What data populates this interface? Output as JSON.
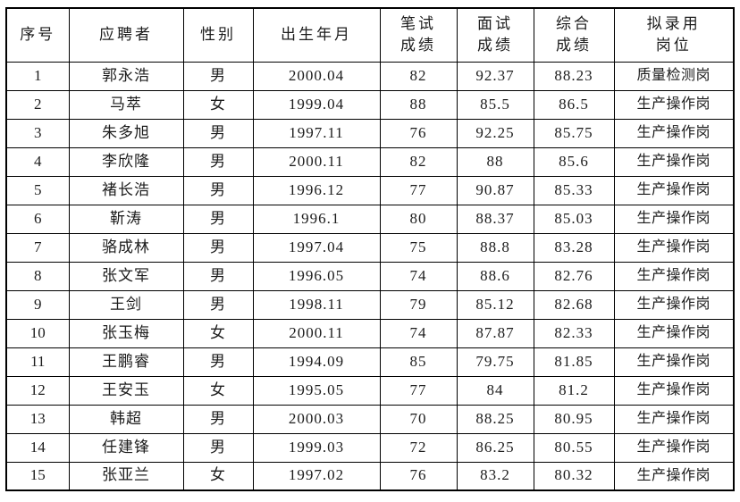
{
  "colors": {
    "border": "#000000",
    "text": "#1c1c1c",
    "background": "#ffffff"
  },
  "table": {
    "columns": [
      {
        "key": "index",
        "label": "序号"
      },
      {
        "key": "name",
        "label": "应聘者"
      },
      {
        "key": "gender",
        "label": "性别"
      },
      {
        "key": "birth",
        "label": "出生年月"
      },
      {
        "key": "written",
        "label": "笔试\n成绩"
      },
      {
        "key": "interview",
        "label": "面试\n成绩"
      },
      {
        "key": "composite",
        "label": "综合\n成绩"
      },
      {
        "key": "position",
        "label": "拟录用\n岗位"
      }
    ],
    "rows": [
      [
        "1",
        "郭永浩",
        "男",
        "2000.04",
        "82",
        "92.37",
        "88.23",
        "质量检测岗"
      ],
      [
        "2",
        "马萃",
        "女",
        "1999.04",
        "88",
        "85.5",
        "86.5",
        "生产操作岗"
      ],
      [
        "3",
        "朱多旭",
        "男",
        "1997.11",
        "76",
        "92.25",
        "85.75",
        "生产操作岗"
      ],
      [
        "4",
        "李欣隆",
        "男",
        "2000.11",
        "82",
        "88",
        "85.6",
        "生产操作岗"
      ],
      [
        "5",
        "褚长浩",
        "男",
        "1996.12",
        "77",
        "90.87",
        "85.33",
        "生产操作岗"
      ],
      [
        "6",
        "靳涛",
        "男",
        "1996.1",
        "80",
        "88.37",
        "85.03",
        "生产操作岗"
      ],
      [
        "7",
        "骆成林",
        "男",
        "1997.04",
        "75",
        "88.8",
        "83.28",
        "生产操作岗"
      ],
      [
        "8",
        "张文军",
        "男",
        "1996.05",
        "74",
        "88.6",
        "82.76",
        "生产操作岗"
      ],
      [
        "9",
        "王剑",
        "男",
        "1998.11",
        "79",
        "85.12",
        "82.68",
        "生产操作岗"
      ],
      [
        "10",
        "张玉梅",
        "女",
        "2000.11",
        "74",
        "87.87",
        "82.33",
        "生产操作岗"
      ],
      [
        "11",
        "王鹏睿",
        "男",
        "1994.09",
        "85",
        "79.75",
        "81.85",
        "生产操作岗"
      ],
      [
        "12",
        "王安玉",
        "女",
        "1995.05",
        "77",
        "84",
        "81.2",
        "生产操作岗"
      ],
      [
        "13",
        "韩超",
        "男",
        "2000.03",
        "70",
        "88.25",
        "80.95",
        "生产操作岗"
      ],
      [
        "14",
        "任建锋",
        "男",
        "1999.03",
        "72",
        "86.25",
        "80.55",
        "生产操作岗"
      ],
      [
        "15",
        "张亚兰",
        "女",
        "1997.02",
        "76",
        "83.2",
        "80.32",
        "生产操作岗"
      ]
    ]
  }
}
